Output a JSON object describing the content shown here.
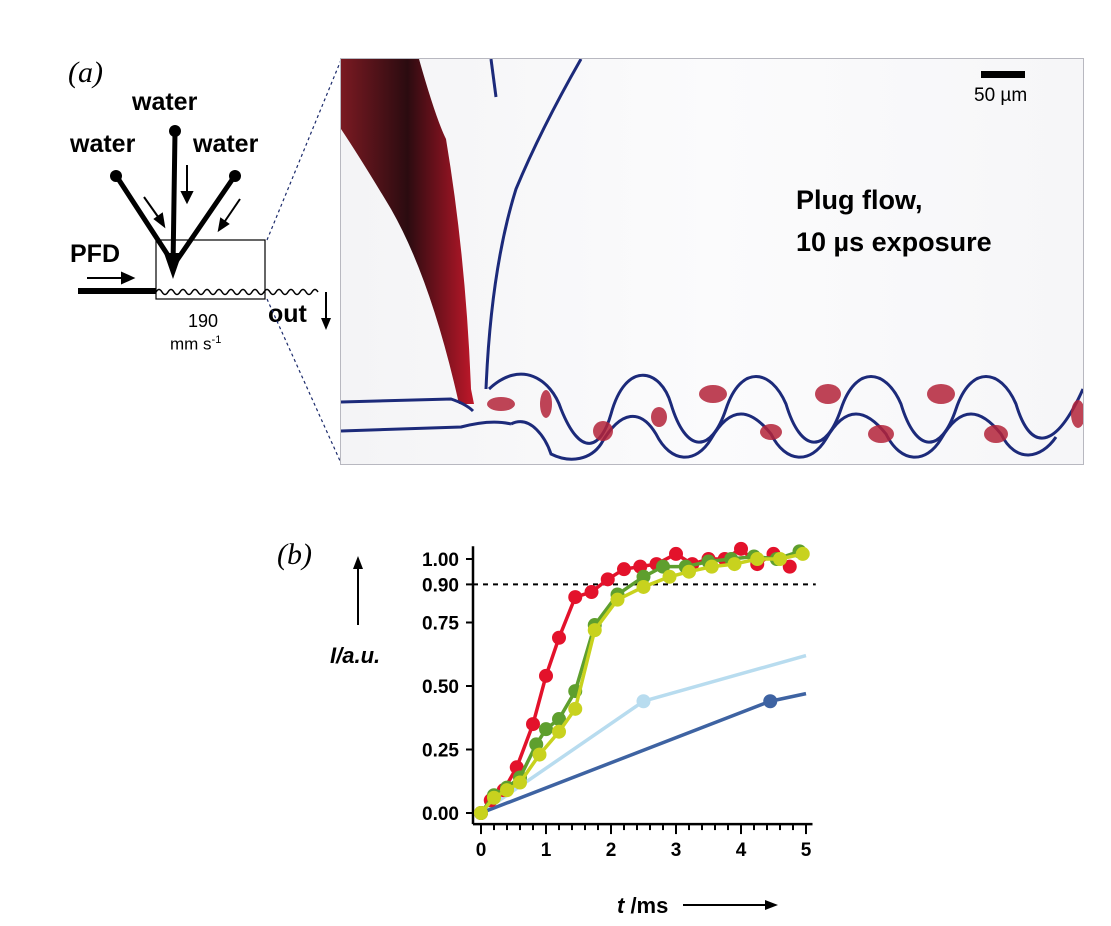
{
  "panel_a": {
    "label": "(a)",
    "schematic": {
      "inlet_top": "water",
      "inlet_left": "water",
      "inlet_right": "water",
      "inlet_pfd": "PFD",
      "outlet": "out",
      "speed_value": "190",
      "speed_unit": "mm s",
      "speed_exp": "-1"
    },
    "micrograph": {
      "scale_bar": "50 µm",
      "caption_line1": "Plug flow,",
      "caption_line2": "10 µs exposure"
    }
  },
  "panel_b": {
    "label": "(b)",
    "chart_data": {
      "type": "line",
      "xlabel_italic": "t",
      "xlabel_unit": " /ms",
      "ylabel": "I/a.u.",
      "xlim": [
        0,
        5
      ],
      "ylim": [
        0,
        1.05
      ],
      "x_ticks": [
        "0",
        "1",
        "2",
        "3",
        "4",
        "5"
      ],
      "y_ticks": [
        "0.00",
        "0.25",
        "0.50",
        "0.75",
        "0.90",
        "1.00"
      ],
      "reference_line": 0.9,
      "series": [
        {
          "color": "#e3122b",
          "markers": true,
          "x": [
            0,
            0.15,
            0.35,
            0.55,
            0.8,
            1.0,
            1.2,
            1.45,
            1.7,
            1.95,
            2.2,
            2.45,
            2.7,
            3.0,
            3.25,
            3.5,
            3.75,
            4.0,
            4.25,
            4.5,
            4.75
          ],
          "y": [
            0.0,
            0.05,
            0.09,
            0.18,
            0.35,
            0.54,
            0.69,
            0.85,
            0.87,
            0.92,
            0.96,
            0.97,
            0.98,
            1.02,
            0.98,
            1.0,
            1.0,
            1.04,
            0.98,
            1.02,
            0.97
          ]
        },
        {
          "color": "#5e9f2e",
          "markers": true,
          "x": [
            0,
            0.2,
            0.4,
            0.6,
            0.85,
            1.0,
            1.2,
            1.45,
            1.75,
            2.1,
            2.5,
            2.8,
            3.15,
            3.5,
            3.85,
            4.2,
            4.55,
            4.9
          ],
          "y": [
            0.0,
            0.07,
            0.1,
            0.14,
            0.27,
            0.33,
            0.37,
            0.48,
            0.74,
            0.86,
            0.93,
            0.97,
            0.97,
            0.99,
            1.0,
            1.01,
            1.0,
            1.03
          ]
        },
        {
          "color": "#c8d21e",
          "markers": true,
          "x": [
            0,
            0.2,
            0.4,
            0.6,
            0.9,
            1.2,
            1.45,
            1.75,
            2.1,
            2.5,
            2.9,
            3.2,
            3.55,
            3.9,
            4.25,
            4.6,
            4.95
          ],
          "y": [
            0.0,
            0.06,
            0.09,
            0.12,
            0.23,
            0.32,
            0.41,
            0.72,
            0.84,
            0.89,
            0.93,
            0.95,
            0.97,
            0.98,
            1.0,
            1.0,
            1.02
          ]
        },
        {
          "color": "#b8dcef",
          "markers": false,
          "marker_x": [
            2.5
          ],
          "marker_y": [
            0.44
          ],
          "x": [
            0,
            2.5,
            5.0
          ],
          "y": [
            0.0,
            0.44,
            0.62
          ]
        },
        {
          "color": "#3e63a2",
          "markers": false,
          "marker_x": [
            4.45
          ],
          "marker_y": [
            0.44
          ],
          "x": [
            0,
            4.45,
            5.0
          ],
          "y": [
            0.0,
            0.44,
            0.47
          ]
        }
      ]
    }
  }
}
